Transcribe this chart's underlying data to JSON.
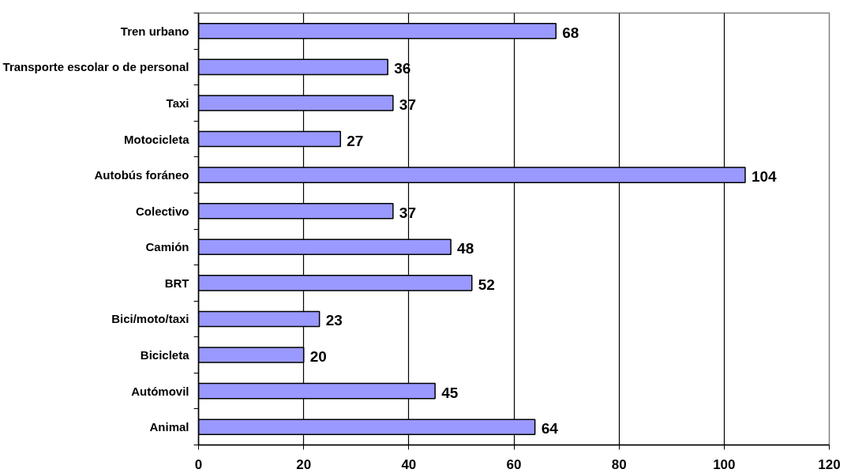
{
  "chart_data": {
    "type": "bar",
    "orientation": "horizontal",
    "categories": [
      "Tren urbano",
      "Transporte escolar o de personal",
      "Taxi",
      "Motocicleta",
      "Autobús foráneo",
      "Colectivo",
      "Camión",
      "BRT",
      "Bici/moto/taxi",
      "Bicicleta",
      "Autómovil",
      "Animal"
    ],
    "values": [
      68,
      36,
      37,
      27,
      104,
      37,
      48,
      52,
      23,
      20,
      45,
      64
    ],
    "color": "#9999ff",
    "xlim": [
      0,
      120
    ],
    "xticks": [
      0,
      20,
      40,
      60,
      80,
      100,
      120
    ],
    "grid": "x",
    "data_labels": true
  }
}
